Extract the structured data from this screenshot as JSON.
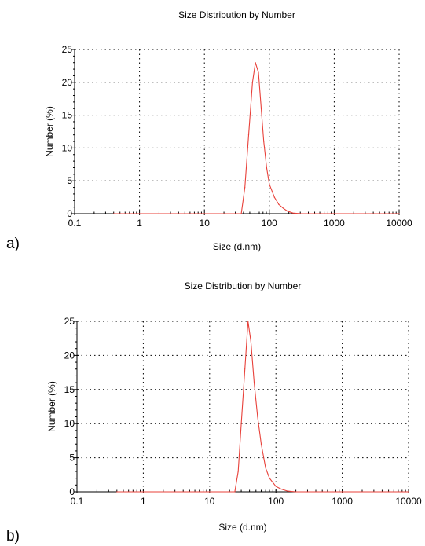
{
  "chart_data": [
    {
      "type": "line",
      "panel_label": "a)",
      "title": "Size Distribution by Number",
      "xlabel": "Size (d.nm)",
      "ylabel": "Number (%)",
      "xscale": "log",
      "xlim": [
        0.1,
        10000
      ],
      "ylim": [
        0,
        25
      ],
      "xticks": [
        "0.1",
        "1",
        "10",
        "100",
        "1000",
        "10000"
      ],
      "yticks": [
        "0",
        "5",
        "10",
        "15",
        "20",
        "25"
      ],
      "grid": true,
      "color": "#e8413a",
      "x": [
        0.4,
        1,
        10,
        30,
        37,
        42,
        48,
        55,
        61,
        68,
        75,
        82,
        91,
        100,
        120,
        140,
        165,
        190,
        230,
        300,
        500,
        1000,
        5000,
        10000
      ],
      "y": [
        0,
        0,
        0,
        0,
        0,
        4,
        12,
        20,
        23,
        21.5,
        16,
        11,
        7,
        4.5,
        2.5,
        1.4,
        0.8,
        0.4,
        0.1,
        0,
        0,
        0,
        0,
        0
      ]
    },
    {
      "type": "line",
      "panel_label": "b)",
      "title": "Size Distribution by Number",
      "xlabel": "Size (d.nm)",
      "ylabel": "Number (%)",
      "xscale": "log",
      "xlim": [
        0.1,
        10000
      ],
      "ylim": [
        0,
        25
      ],
      "xticks": [
        "0.1",
        "1",
        "10",
        "100",
        "1000",
        "10000"
      ],
      "yticks": [
        "0",
        "5",
        "10",
        "15",
        "20",
        "25"
      ],
      "grid": true,
      "color": "#e8413a",
      "x": [
        0.4,
        1,
        10,
        20,
        24,
        27,
        30,
        34,
        38,
        42,
        47,
        53,
        60,
        70,
        80,
        100,
        120,
        150,
        200,
        300,
        1000,
        5000,
        10000
      ],
      "y": [
        0,
        0,
        0,
        0,
        0,
        3,
        10,
        18,
        25,
        22,
        16,
        11,
        7,
        3.5,
        2,
        0.8,
        0.4,
        0.1,
        0,
        0,
        0,
        0,
        0
      ]
    }
  ]
}
